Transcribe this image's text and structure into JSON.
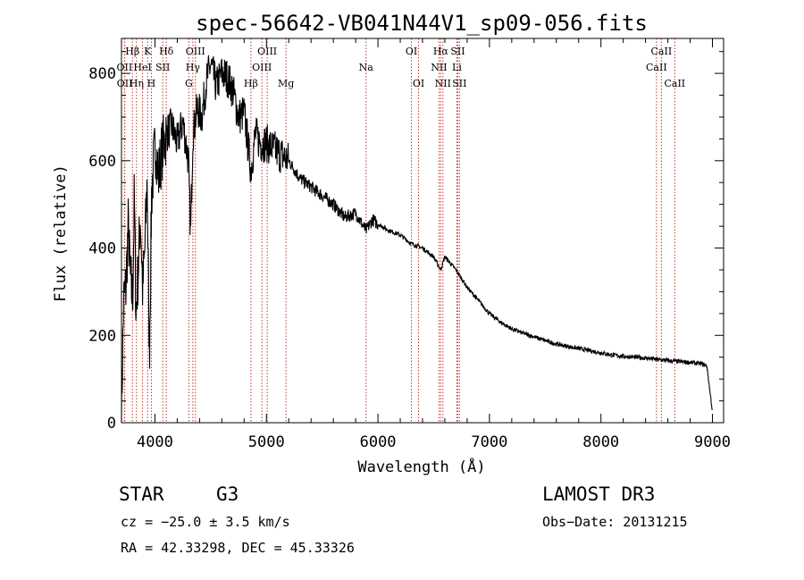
{
  "chart_data": {
    "type": "line",
    "title": "spec-56642-VB041N44V1_sp09-056.fits",
    "xlabel": "Wavelength (Å)",
    "ylabel": "Flux (relative)",
    "xlim": [
      3700,
      9100
    ],
    "ylim": [
      0,
      880
    ],
    "xticks": [
      4000,
      5000,
      6000,
      7000,
      8000,
      9000
    ],
    "yticks": [
      0,
      200,
      400,
      600,
      800
    ],
    "series": [
      {
        "name": "spectrum",
        "x": [
          3700,
          3720,
          3740,
          3760,
          3780,
          3800,
          3815,
          3830,
          3850,
          3870,
          3890,
          3910,
          3930,
          3950,
          3970,
          3990,
          4010,
          4030,
          4060,
          4100,
          4150,
          4200,
          4250,
          4300,
          4320,
          4340,
          4380,
          4420,
          4460,
          4500,
          4550,
          4600,
          4650,
          4700,
          4750,
          4800,
          4861,
          4900,
          4950,
          5000,
          5100,
          5200,
          5300,
          5400,
          5500,
          5600,
          5700,
          5800,
          5893,
          5950,
          6000,
          6100,
          6200,
          6300,
          6400,
          6500,
          6563,
          6600,
          6700,
          6800,
          6900,
          7000,
          7100,
          7200,
          7300,
          7400,
          7500,
          7600,
          7700,
          7800,
          7900,
          8000,
          8100,
          8200,
          8300,
          8400,
          8500,
          8600,
          8700,
          8800,
          8900,
          8950,
          9000
        ],
        "values": [
          20,
          280,
          310,
          450,
          330,
          280,
          520,
          250,
          350,
          480,
          300,
          400,
          560,
          150,
          520,
          600,
          640,
          560,
          620,
          660,
          680,
          640,
          690,
          600,
          430,
          660,
          720,
          700,
          780,
          820,
          770,
          800,
          790,
          760,
          700,
          710,
          580,
          660,
          640,
          640,
          620,
          600,
          560,
          540,
          520,
          500,
          470,
          480,
          440,
          465,
          455,
          440,
          430,
          410,
          400,
          380,
          350,
          380,
          350,
          310,
          280,
          250,
          230,
          215,
          205,
          197,
          188,
          180,
          175,
          170,
          165,
          160,
          155,
          152,
          150,
          148,
          145,
          142,
          140,
          138,
          135,
          130,
          25
        ]
      }
    ],
    "lines": [
      {
        "label": "Hβ",
        "wl": 3798,
        "row": 1
      },
      {
        "label": "OII",
        "wl": 3727,
        "row": 2
      },
      {
        "label": "OII",
        "wl": 3729,
        "row": 3
      },
      {
        "label": "K",
        "wl": 3934,
        "row": 1
      },
      {
        "label": "HeI",
        "wl": 3889,
        "row": 2
      },
      {
        "label": "Hη",
        "wl": 3835,
        "row": 3
      },
      {
        "label": "H",
        "wl": 3968,
        "row": 3
      },
      {
        "label": "Hδ",
        "wl": 4102,
        "row": 1
      },
      {
        "label": "SII",
        "wl": 4070,
        "row": 2
      },
      {
        "label": "OIII",
        "wl": 4363,
        "row": 1
      },
      {
        "label": "Hγ",
        "wl": 4340,
        "row": 2
      },
      {
        "label": "G",
        "wl": 4304,
        "row": 3
      },
      {
        "label": "Hβ",
        "wl": 4861,
        "row": 3
      },
      {
        "label": "OIII",
        "wl": 5007,
        "row": 1
      },
      {
        "label": "OIII",
        "wl": 4959,
        "row": 2
      },
      {
        "label": "Mg",
        "wl": 5175,
        "row": 3
      },
      {
        "label": "Na",
        "wl": 5893,
        "row": 2
      },
      {
        "label": "OI",
        "wl": 6300,
        "row": 1
      },
      {
        "label": "OI",
        "wl": 6364,
        "row": 3
      },
      {
        "label": "Hα",
        "wl": 6563,
        "row": 1
      },
      {
        "label": "NII",
        "wl": 6548,
        "row": 2
      },
      {
        "label": "NII",
        "wl": 6583,
        "row": 3
      },
      {
        "label": "SII",
        "wl": 6716,
        "row": 1
      },
      {
        "label": "Li",
        "wl": 6708,
        "row": 2
      },
      {
        "label": "SII",
        "wl": 6731,
        "row": 3
      },
      {
        "label": "CaII",
        "wl": 8542,
        "row": 1
      },
      {
        "label": "CaII",
        "wl": 8498,
        "row": 2
      },
      {
        "label": "CaII",
        "wl": 8662,
        "row": 3
      }
    ]
  },
  "info": {
    "class_label": "STAR",
    "subclass": "G3",
    "survey": "LAMOST DR3",
    "cz": "cz = −25.0 ± 3.5 km/s",
    "obs_date": "Obs−Date: 20131215",
    "coords": "RA =  42.33298, DEC =  45.33326"
  },
  "colors": {
    "spectrum": "#000000",
    "line_markers": "#c0392b"
  }
}
